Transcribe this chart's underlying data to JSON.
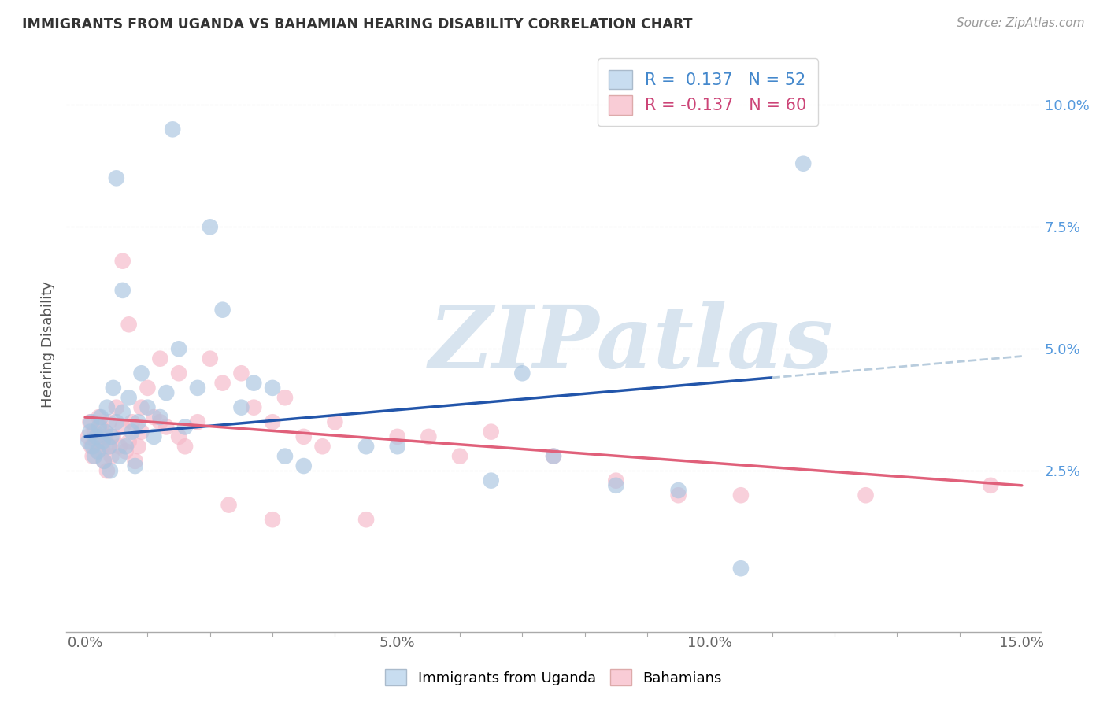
{
  "title": "IMMIGRANTS FROM UGANDA VS BAHAMIAN HEARING DISABILITY CORRELATION CHART",
  "source": "Source: ZipAtlas.com",
  "xlabel_tick_vals": [
    0.0,
    5.0,
    10.0,
    15.0
  ],
  "xlabel_ticks": [
    "0.0%",
    "5.0%",
    "10.0%",
    "15.0%"
  ],
  "ylabel_tick_vals": [
    2.5,
    5.0,
    7.5,
    10.0
  ],
  "ylabel_ticks": [
    "2.5%",
    "5.0%",
    "7.5%",
    "10.0%"
  ],
  "xlim": [
    -0.3,
    15.3
  ],
  "ylim": [
    -0.8,
    11.0
  ],
  "series1_label": "Immigrants from Uganda",
  "series2_label": "Bahamians",
  "series1_color": "#a8c4e0",
  "series2_color": "#f5b8c8",
  "series1_line_color": "#2255aa",
  "series2_line_color": "#e0607a",
  "series1_dash_color": "#b8ccdd",
  "watermark_text": "ZIPatlas",
  "watermark_color": "#d8e4ef",
  "background_color": "#ffffff",
  "grid_color": "#cccccc",
  "legend_label1": "R =  0.137   N = 52",
  "legend_label2": "R = -0.137   N = 60",
  "legend_color1": "#4488cc",
  "legend_color2": "#cc4477",
  "blue_x": [
    0.05,
    0.08,
    0.1,
    0.12,
    0.15,
    0.18,
    0.2,
    0.22,
    0.25,
    0.28,
    0.3,
    0.32,
    0.35,
    0.38,
    0.4,
    0.42,
    0.45,
    0.5,
    0.55,
    0.6,
    0.65,
    0.7,
    0.75,
    0.8,
    0.85,
    0.9,
    1.0,
    1.1,
    1.2,
    1.3,
    1.5,
    1.6,
    1.8,
    2.0,
    2.2,
    2.5,
    2.7,
    3.0,
    3.2,
    3.5,
    4.5,
    5.0,
    6.5,
    7.0,
    7.5,
    8.5,
    9.5,
    10.5,
    11.5,
    1.4,
    0.5,
    0.6
  ],
  "blue_y": [
    3.1,
    3.3,
    3.5,
    3.0,
    2.8,
    3.2,
    2.9,
    3.4,
    3.6,
    3.1,
    2.7,
    3.3,
    3.8,
    3.0,
    2.5,
    3.2,
    4.2,
    3.5,
    2.8,
    3.7,
    3.0,
    4.0,
    3.3,
    2.6,
    3.5,
    4.5,
    3.8,
    3.2,
    3.6,
    4.1,
    5.0,
    3.4,
    4.2,
    7.5,
    5.8,
    3.8,
    4.3,
    4.2,
    2.8,
    2.6,
    3.0,
    3.0,
    2.3,
    4.5,
    2.8,
    2.2,
    2.1,
    0.5,
    8.8,
    9.5,
    8.5,
    6.2
  ],
  "pink_x": [
    0.05,
    0.08,
    0.1,
    0.12,
    0.15,
    0.18,
    0.2,
    0.22,
    0.25,
    0.28,
    0.3,
    0.32,
    0.35,
    0.38,
    0.4,
    0.42,
    0.45,
    0.5,
    0.55,
    0.6,
    0.65,
    0.7,
    0.75,
    0.8,
    0.85,
    0.9,
    1.0,
    1.1,
    1.2,
    1.3,
    1.5,
    1.6,
    1.8,
    2.0,
    2.2,
    2.5,
    2.7,
    3.0,
    3.2,
    3.5,
    3.8,
    4.0,
    4.5,
    5.0,
    5.5,
    6.0,
    6.5,
    7.5,
    8.5,
    9.5,
    10.5,
    12.5,
    14.5,
    0.6,
    0.7,
    0.9,
    1.2,
    1.5,
    2.3,
    3.0
  ],
  "pink_y": [
    3.2,
    3.5,
    3.0,
    2.8,
    3.3,
    3.1,
    2.9,
    3.6,
    3.4,
    3.0,
    2.7,
    3.2,
    2.5,
    3.5,
    3.0,
    2.8,
    3.2,
    3.8,
    3.0,
    3.4,
    2.9,
    3.1,
    3.5,
    2.7,
    3.0,
    3.3,
    4.2,
    3.6,
    4.8,
    3.4,
    4.5,
    3.0,
    3.5,
    4.8,
    4.3,
    4.5,
    3.8,
    3.5,
    4.0,
    3.2,
    3.0,
    3.5,
    1.5,
    3.2,
    3.2,
    2.8,
    3.3,
    2.8,
    2.3,
    2.0,
    2.0,
    2.0,
    2.2,
    6.8,
    5.5,
    3.8,
    3.5,
    3.2,
    1.8,
    1.5
  ],
  "trend1_x0": 0.0,
  "trend1_y0": 3.2,
  "trend1_x1": 15.0,
  "trend1_y1": 4.85,
  "trend1_solid_end": 11.0,
  "trend2_x0": 0.0,
  "trend2_y0": 3.6,
  "trend2_x1": 15.0,
  "trend2_y1": 2.2
}
